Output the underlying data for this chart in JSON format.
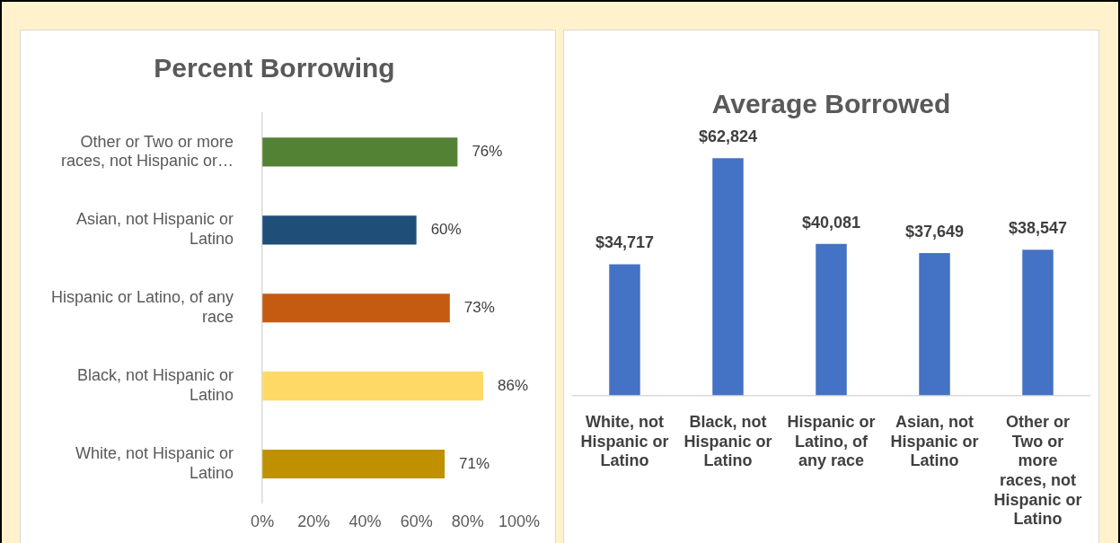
{
  "chart_data": [
    {
      "type": "bar",
      "orientation": "horizontal",
      "title": "Percent Borrowing",
      "categories": [
        "Other or Two or more races, not Hispanic or…",
        "Asian, not Hispanic or Latino",
        "Hispanic or Latino, of any race",
        "Black, not Hispanic or Latino",
        "White, not Hispanic or Latino"
      ],
      "values": [
        76,
        60,
        73,
        86,
        71
      ],
      "colors": [
        "#548235",
        "#1f4e79",
        "#c55a11",
        "#ffd966",
        "#bf9000"
      ],
      "value_labels": [
        "76%",
        "60%",
        "73%",
        "86%",
        "71%"
      ],
      "xlim": [
        0,
        100
      ],
      "xticks": [
        {
          "value": 0,
          "label": "0%"
        },
        {
          "value": 20,
          "label": "20%"
        },
        {
          "value": 40,
          "label": "40%"
        },
        {
          "value": 60,
          "label": "60%"
        },
        {
          "value": 80,
          "label": "80%"
        },
        {
          "value": 100,
          "label": "100%"
        }
      ],
      "grid": false,
      "legend": false
    },
    {
      "type": "bar",
      "title": "Average Borrowed",
      "categories": [
        "White, not Hispanic or Latino",
        "Black, not Hispanic or Latino",
        "Hispanic or Latino, of any race",
        "Asian, not Hispanic or Latino",
        "Other or Two or more races, not Hispanic or Latino"
      ],
      "values": [
        34717,
        62824,
        40081,
        37649,
        38547
      ],
      "color": "#4472c4",
      "value_labels": [
        "$34,717",
        "$62,824",
        "$40,081",
        "$37,649",
        "$38,547"
      ],
      "tick_labels": "x",
      "grid": false,
      "legend": false
    }
  ]
}
